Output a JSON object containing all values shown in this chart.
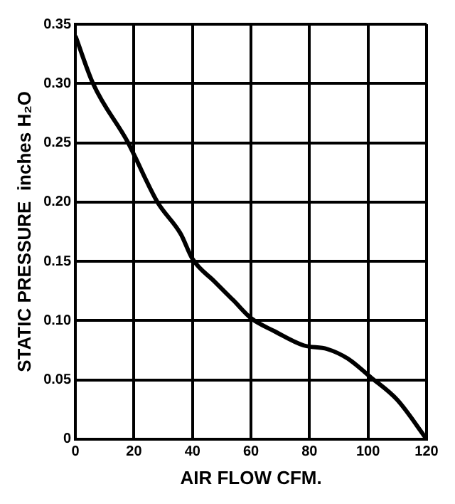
{
  "chart_data": {
    "type": "line",
    "xlabel": "AIR FLOW CFM.",
    "ylabel": "STATIC PRESSURE  inches H₂O",
    "series": [
      {
        "color": "#000000",
        "x": [
          0,
          6,
          18,
          20,
          28,
          36,
          40,
          47.5,
          54,
          60,
          68,
          78,
          86,
          93,
          101,
          110,
          120
        ],
        "values": [
          0.34,
          0.3,
          0.25,
          0.24,
          0.2,
          0.173,
          0.152,
          0.133,
          0.117,
          0.102,
          0.091,
          0.079,
          0.076,
          0.068,
          0.052,
          0.033,
          0
        ]
      }
    ],
    "xlim": [
      0,
      120
    ],
    "xticks": [
      0,
      20,
      40,
      60,
      80,
      100,
      120
    ],
    "ylim": [
      0,
      0.35
    ],
    "yticks": [
      0,
      {
        "value": 0.05,
        "label": "0.05"
      },
      {
        "value": 0.1,
        "label": "0.10"
      },
      {
        "value": 0.15,
        "label": "0.15"
      },
      {
        "value": 0.2,
        "label": "0.20"
      },
      {
        "value": 0.25,
        "label": "0.25"
      },
      {
        "value": 0.3,
        "label": "0.30"
      },
      {
        "value": 0.35,
        "label": "0.35"
      }
    ],
    "grid": true,
    "marker": "none",
    "line_style": "solid",
    "legend": false
  }
}
